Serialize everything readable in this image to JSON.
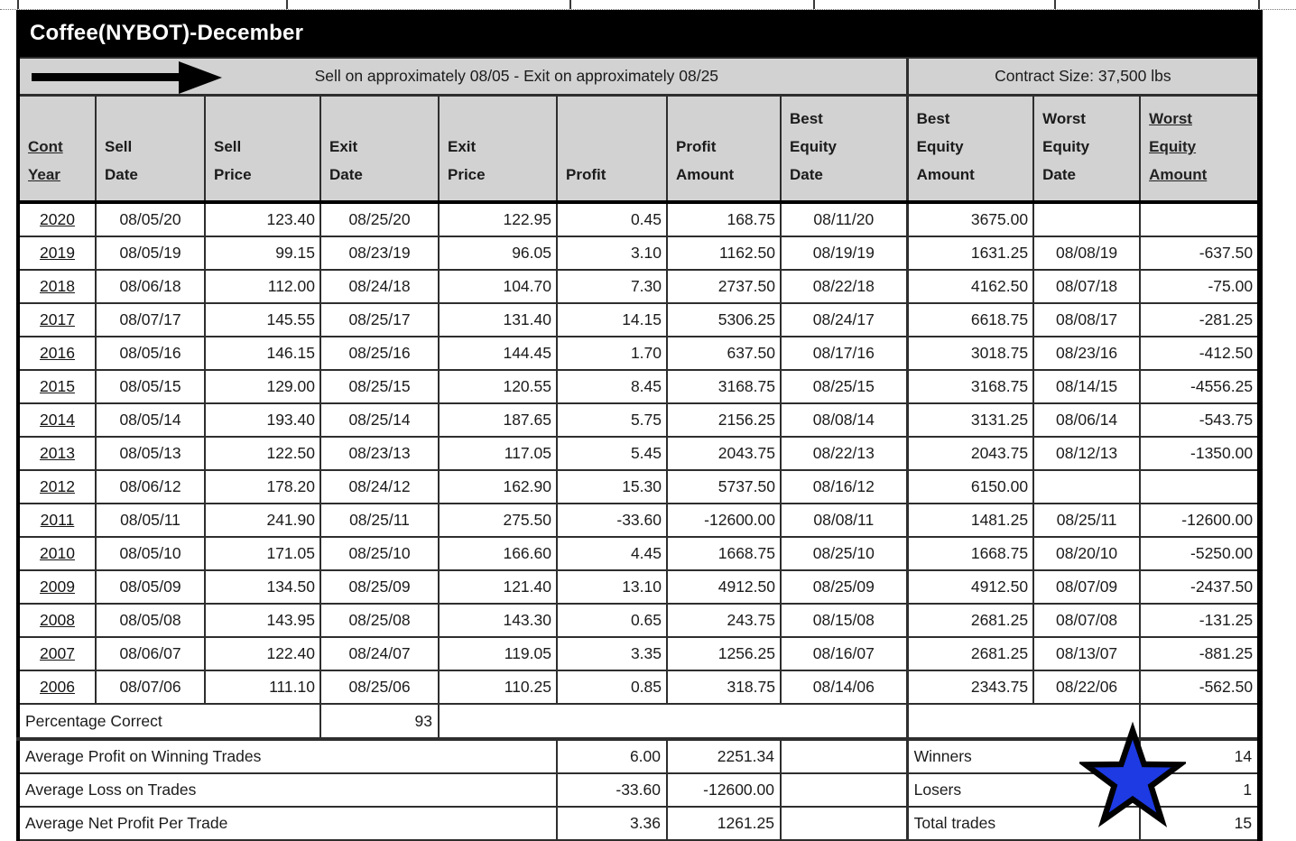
{
  "page": {
    "title": "Coffee(NYBOT)-December"
  },
  "strategy_bar": {
    "instruction": "Sell on approximately 08/05 - Exit on approximately 08/25",
    "contract_size": "Contract Size: 37,500 lbs"
  },
  "table": {
    "headers": [
      "Cont\nYear",
      "Sell\nDate",
      "Sell\nPrice",
      "Exit\nDate",
      "Exit\nPrice",
      "Profit",
      "Profit\nAmount",
      "Best\nEquity\nDate",
      "Best\nEquity\nAmount",
      "Worst\nEquity\nDate",
      "Worst\nEquity\nAmount"
    ],
    "rows": [
      [
        "2020",
        "08/05/20",
        "123.40",
        "08/25/20",
        "122.95",
        "0.45",
        "168.75",
        "08/11/20",
        "3675.00",
        "",
        ""
      ],
      [
        "2019",
        "08/05/19",
        "99.15",
        "08/23/19",
        "96.05",
        "3.10",
        "1162.50",
        "08/19/19",
        "1631.25",
        "08/08/19",
        "-637.50"
      ],
      [
        "2018",
        "08/06/18",
        "112.00",
        "08/24/18",
        "104.70",
        "7.30",
        "2737.50",
        "08/22/18",
        "4162.50",
        "08/07/18",
        "-75.00"
      ],
      [
        "2017",
        "08/07/17",
        "145.55",
        "08/25/17",
        "131.40",
        "14.15",
        "5306.25",
        "08/24/17",
        "6618.75",
        "08/08/17",
        "-281.25"
      ],
      [
        "2016",
        "08/05/16",
        "146.15",
        "08/25/16",
        "144.45",
        "1.70",
        "637.50",
        "08/17/16",
        "3018.75",
        "08/23/16",
        "-412.50"
      ],
      [
        "2015",
        "08/05/15",
        "129.00",
        "08/25/15",
        "120.55",
        "8.45",
        "3168.75",
        "08/25/15",
        "3168.75",
        "08/14/15",
        "-4556.25"
      ],
      [
        "2014",
        "08/05/14",
        "193.40",
        "08/25/14",
        "187.65",
        "5.75",
        "2156.25",
        "08/08/14",
        "3131.25",
        "08/06/14",
        "-543.75"
      ],
      [
        "2013",
        "08/05/13",
        "122.50",
        "08/23/13",
        "117.05",
        "5.45",
        "2043.75",
        "08/22/13",
        "2043.75",
        "08/12/13",
        "-1350.00"
      ],
      [
        "2012",
        "08/06/12",
        "178.20",
        "08/24/12",
        "162.90",
        "15.30",
        "5737.50",
        "08/16/12",
        "6150.00",
        "",
        ""
      ],
      [
        "2011",
        "08/05/11",
        "241.90",
        "08/25/11",
        "275.50",
        "-33.60",
        "-12600.00",
        "08/08/11",
        "1481.25",
        "08/25/11",
        "-12600.00"
      ],
      [
        "2010",
        "08/05/10",
        "171.05",
        "08/25/10",
        "166.60",
        "4.45",
        "1668.75",
        "08/25/10",
        "1668.75",
        "08/20/10",
        "-5250.00"
      ],
      [
        "2009",
        "08/05/09",
        "134.50",
        "08/25/09",
        "121.40",
        "13.10",
        "4912.50",
        "08/25/09",
        "4912.50",
        "08/07/09",
        "-2437.50"
      ],
      [
        "2008",
        "08/05/08",
        "143.95",
        "08/25/08",
        "143.30",
        "0.65",
        "243.75",
        "08/15/08",
        "2681.25",
        "08/07/08",
        "-131.25"
      ],
      [
        "2007",
        "08/06/07",
        "122.40",
        "08/24/07",
        "119.05",
        "3.35",
        "1256.25",
        "08/16/07",
        "2681.25",
        "08/13/07",
        "-881.25"
      ],
      [
        "2006",
        "08/07/06",
        "111.10",
        "08/25/06",
        "110.25",
        "0.85",
        "318.75",
        "08/14/06",
        "2343.75",
        "08/22/06",
        "-562.50"
      ]
    ]
  },
  "summary": {
    "percentage_correct": {
      "label": "Percentage Correct",
      "value": "93"
    },
    "stats": [
      {
        "label": "Average Profit on Winning Trades",
        "profit": "6.00",
        "amount": "2251.34",
        "stat_label": "Winners",
        "stat_value": "14"
      },
      {
        "label": "Average Loss on Trades",
        "profit": "-33.60",
        "amount": "-12600.00",
        "stat_label": "Losers",
        "stat_value": "1"
      },
      {
        "label": "Average Net Profit Per Trade",
        "profit": "3.36",
        "amount": "1261.25",
        "stat_label": "Total trades",
        "stat_value": "15"
      }
    ]
  },
  "icons": {
    "arrow": "right-arrow-icon",
    "star": "star-icon"
  },
  "colors": {
    "star_fill": "#1d3ae3",
    "header_bg": "#d2d2d2",
    "title_bg": "#000000",
    "border": "#2e2e2e"
  }
}
